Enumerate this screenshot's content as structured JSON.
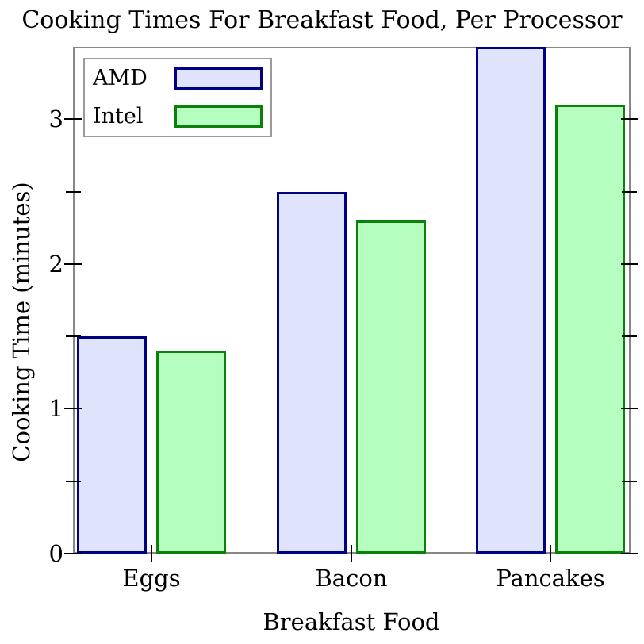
{
  "title": "Cooking Times For Breakfast Food, Per Processor",
  "chart_data": {
    "type": "bar",
    "title": "Cooking Times For Breakfast Food, Per Processor",
    "xlabel": "Breakfast Food",
    "ylabel": "Cooking Time (minutes)",
    "categories": [
      "Eggs",
      "Bacon",
      "Pancakes"
    ],
    "series": [
      {
        "name": "AMD",
        "values": [
          1.5,
          2.5,
          3.5
        ],
        "fill": "#dfe3fb",
        "stroke": "#000082"
      },
      {
        "name": "Intel",
        "values": [
          1.4,
          2.3,
          3.1
        ],
        "fill": "#b6fec0",
        "stroke": "#0b800b"
      }
    ],
    "ylim": [
      0,
      3.5
    ],
    "yticks": [
      0,
      1,
      2,
      3
    ],
    "yticks_minor": [
      0.5,
      1.5,
      2.5
    ],
    "grid": false,
    "legend_position": "top-left",
    "legend_entries": [
      "AMD",
      "Intel"
    ]
  },
  "colors": {
    "background": "#ffffff",
    "spine": "#878787",
    "tick": "#000000",
    "text": "#000000",
    "legend_border": "#9b9b9b"
  }
}
